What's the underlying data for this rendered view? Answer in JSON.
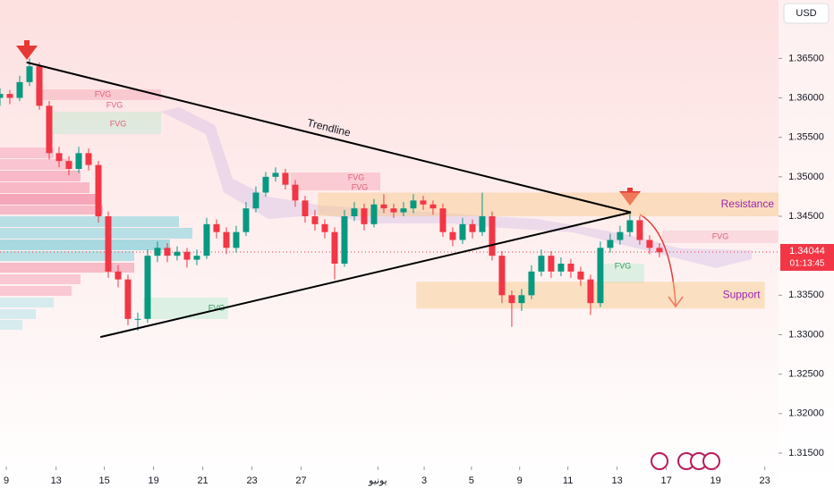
{
  "chart_data": {
    "type": "candlestick",
    "currency": "USD",
    "xlim": [
      0,
      79.1
    ],
    "ylim": [
      1.3133,
      1.3724
    ],
    "xticks": [
      {
        "value": 0.64,
        "label": "9"
      },
      {
        "value": 5.7,
        "label": "13"
      },
      {
        "value": 10.6,
        "label": "15"
      },
      {
        "value": 15.6,
        "label": "19"
      },
      {
        "value": 20.6,
        "label": "21"
      },
      {
        "value": 25.6,
        "label": "23"
      },
      {
        "value": 30.6,
        "label": "27"
      },
      {
        "value": 38.4,
        "label": "يونيو"
      },
      {
        "value": 43.1,
        "label": "3"
      },
      {
        "value": 47.9,
        "label": "5"
      },
      {
        "value": 52.8,
        "label": "9"
      },
      {
        "value": 57.7,
        "label": "11"
      },
      {
        "value": 62.7,
        "label": "13"
      },
      {
        "value": 67.7,
        "label": "17"
      },
      {
        "value": 72.7,
        "label": "19"
      },
      {
        "value": 77.7,
        "label": "23"
      }
    ],
    "yticks": [
      {
        "value": 1.365,
        "label": "1.36500"
      },
      {
        "value": 1.36,
        "label": "1.36000"
      },
      {
        "value": 1.355,
        "label": "1.35500"
      },
      {
        "value": 1.35,
        "label": "1.35000"
      },
      {
        "value": 1.345,
        "label": "1.34500"
      },
      {
        "value": 1.335,
        "label": "1.33500"
      },
      {
        "value": 1.33,
        "label": "1.33000"
      },
      {
        "value": 1.325,
        "label": "1.32500"
      },
      {
        "value": 1.32,
        "label": "1.32000"
      },
      {
        "value": 1.315,
        "label": "1.31500"
      }
    ],
    "up_color": "#089981",
    "down_color": "#f23645",
    "open": [
      1.36,
      1.3605,
      1.36,
      1.362,
      1.364,
      1.359,
      1.353,
      1.352,
      1.351,
      1.353,
      1.3515,
      1.345,
      1.338,
      1.337,
      1.332,
      1.332,
      1.34,
      1.341,
      1.34,
      1.3405,
      1.3395,
      1.34,
      1.344,
      1.343,
      1.341,
      1.343,
      1.346,
      1.348,
      1.35,
      1.3505,
      1.349,
      1.347,
      1.345,
      1.344,
      1.343,
      1.339,
      1.345,
      1.346,
      1.344,
      1.3465,
      1.346,
      1.3455,
      1.346,
      1.347,
      1.3465,
      1.346,
      1.343,
      1.342,
      1.344,
      1.343,
      1.345,
      1.34,
      1.335,
      1.334,
      1.335,
      1.338,
      1.34,
      1.338,
      1.339,
      1.338,
      1.337,
      1.334,
      1.341,
      1.342,
      1.343,
      1.3445,
      1.342,
      1.341
    ],
    "high": [
      1.3612,
      1.361,
      1.3628,
      1.365,
      1.3645,
      1.3596,
      1.3538,
      1.3526,
      1.3538,
      1.3536,
      1.352,
      1.3456,
      1.3388,
      1.3376,
      1.3328,
      1.3408,
      1.3418,
      1.3416,
      1.3412,
      1.341,
      1.3408,
      1.3448,
      1.3446,
      1.3436,
      1.3438,
      1.3468,
      1.3488,
      1.3506,
      1.3512,
      1.351,
      1.3496,
      1.3476,
      1.3458,
      1.3446,
      1.3436,
      1.3458,
      1.3468,
      1.3466,
      1.3472,
      1.3478,
      1.3466,
      1.3468,
      1.3478,
      1.3476,
      1.347,
      1.3466,
      1.3436,
      1.3448,
      1.3446,
      1.348,
      1.3456,
      1.3406,
      1.3356,
      1.3358,
      1.3388,
      1.3408,
      1.3406,
      1.3398,
      1.3396,
      1.3386,
      1.3376,
      1.3418,
      1.3428,
      1.3438,
      1.3455,
      1.345,
      1.3426,
      1.3416
    ],
    "low": [
      1.359,
      1.3592,
      1.3596,
      1.3615,
      1.3585,
      1.3522,
      1.3512,
      1.3502,
      1.3505,
      1.3508,
      1.3442,
      1.3372,
      1.336,
      1.3312,
      1.3305,
      1.3315,
      1.3392,
      1.3392,
      1.3394,
      1.3385,
      1.3388,
      1.3396,
      1.3422,
      1.3402,
      1.3404,
      1.3425,
      1.3455,
      1.3475,
      1.3494,
      1.3484,
      1.3462,
      1.3442,
      1.3432,
      1.3422,
      1.337,
      1.3386,
      1.3444,
      1.3432,
      1.3436,
      1.3454,
      1.3448,
      1.345,
      1.3454,
      1.3458,
      1.3452,
      1.3424,
      1.3412,
      1.3415,
      1.3422,
      1.3425,
      1.3394,
      1.334,
      1.331,
      1.333,
      1.3345,
      1.3374,
      1.3372,
      1.3374,
      1.3372,
      1.3362,
      1.3325,
      1.3335,
      1.3404,
      1.3414,
      1.3424,
      1.3414,
      1.3402,
      1.3398
    ],
    "close": [
      1.3605,
      1.36,
      1.362,
      1.364,
      1.359,
      1.353,
      1.352,
      1.351,
      1.353,
      1.3515,
      1.345,
      1.338,
      1.337,
      1.332,
      1.332,
      1.34,
      1.341,
      1.34,
      1.3405,
      1.3395,
      1.34,
      1.344,
      1.343,
      1.341,
      1.343,
      1.346,
      1.348,
      1.35,
      1.3505,
      1.349,
      1.347,
      1.345,
      1.344,
      1.343,
      1.339,
      1.345,
      1.346,
      1.344,
      1.3465,
      1.346,
      1.3455,
      1.346,
      1.347,
      1.3465,
      1.346,
      1.343,
      1.342,
      1.344,
      1.343,
      1.345,
      1.34,
      1.335,
      1.334,
      1.335,
      1.338,
      1.34,
      1.338,
      1.339,
      1.338,
      1.337,
      1.334,
      1.341,
      1.342,
      1.343,
      1.3445,
      1.342,
      1.341,
      1.34044
    ],
    "current_price": 1.34044,
    "countdown": "01:13:45",
    "trendlines": [
      {
        "label": "Trendline",
        "x": [
          2.7,
          64.1
        ],
        "y": [
          1.3645,
          1.3455
        ]
      },
      {
        "x": [
          10.2,
          64.1
        ],
        "y": [
          1.3297,
          1.3455
        ]
      }
    ],
    "zones": [
      {
        "label": "Resistance",
        "x": [
          32.3,
          79.1
        ],
        "y": [
          1.345,
          1.348
        ]
      },
      {
        "label": "Support",
        "x": [
          42.3,
          77.7
        ],
        "y": [
          1.3333,
          1.3367
        ]
      }
    ],
    "fvg_labels": [
      "FVG",
      "FVG",
      "FVG",
      "FVG",
      "FVG",
      "FVG",
      "FVG",
      "FVG"
    ]
  }
}
